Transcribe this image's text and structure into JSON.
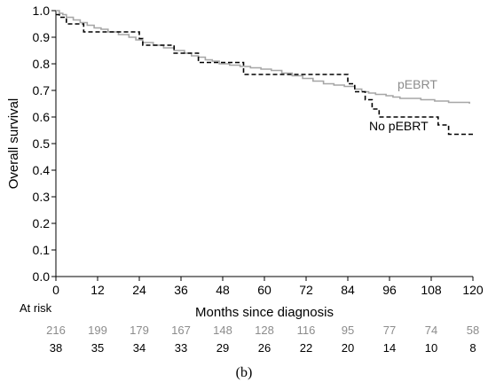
{
  "chart_data": {
    "type": "line",
    "title": "",
    "xlabel": "Months since diagnosis",
    "ylabel": "Overall survival",
    "xlim": [
      0,
      120
    ],
    "ylim": [
      0.0,
      1.0
    ],
    "xticks": [
      "0",
      "12",
      "24",
      "36",
      "48",
      "60",
      "72",
      "84",
      "96",
      "108",
      "120"
    ],
    "yticks": [
      "0.0",
      "0.1",
      "0.2",
      "0.3",
      "0.4",
      "0.5",
      "0.6",
      "0.7",
      "0.8",
      "0.9",
      "1.0"
    ],
    "grid": false,
    "series": [
      {
        "name": "pEBRT",
        "color": "#a6a6a6",
        "style": "solid",
        "x": [
          0,
          1,
          2,
          3,
          5,
          7,
          9,
          11,
          13,
          15,
          18,
          21,
          23,
          25,
          28,
          31,
          34,
          37,
          39,
          41,
          43,
          45,
          47,
          50,
          53,
          56,
          59,
          62,
          65,
          68,
          71,
          74,
          77,
          80,
          83,
          86,
          88,
          90,
          92,
          95,
          97,
          99,
          101,
          103,
          105,
          107,
          109,
          111,
          113,
          115,
          117,
          119
        ],
        "y": [
          1.0,
          0.99,
          0.985,
          0.975,
          0.965,
          0.955,
          0.945,
          0.935,
          0.93,
          0.92,
          0.91,
          0.9,
          0.89,
          0.88,
          0.87,
          0.86,
          0.85,
          0.84,
          0.83,
          0.825,
          0.815,
          0.81,
          0.8,
          0.795,
          0.79,
          0.785,
          0.78,
          0.775,
          0.765,
          0.755,
          0.745,
          0.735,
          0.725,
          0.72,
          0.715,
          0.705,
          0.695,
          0.69,
          0.685,
          0.68,
          0.675,
          0.67,
          0.67,
          0.67,
          0.665,
          0.665,
          0.66,
          0.66,
          0.655,
          0.655,
          0.655,
          0.65
        ]
      },
      {
        "name": "No pEBRT",
        "color": "#000000",
        "style": "dashed",
        "x": [
          0,
          1,
          3,
          8,
          24,
          25,
          34,
          41,
          54,
          84,
          86,
          89,
          91,
          93,
          108,
          110,
          113,
          120
        ],
        "y": [
          0.985,
          0.975,
          0.95,
          0.92,
          0.895,
          0.87,
          0.84,
          0.805,
          0.76,
          0.725,
          0.695,
          0.665,
          0.63,
          0.6,
          0.6,
          0.57,
          0.535,
          0.535
        ]
      }
    ],
    "legend": [
      {
        "label": "pEBRT",
        "color": "#8c8c8c"
      },
      {
        "label": "No pEBRT",
        "color": "#000000"
      }
    ],
    "at_risk": {
      "title": "At risk",
      "rows": [
        {
          "color": "#8c8c8c",
          "values": [
            "216",
            "199",
            "179",
            "167",
            "148",
            "128",
            "116",
            "95",
            "77",
            "74",
            "58"
          ]
        },
        {
          "color": "#000000",
          "values": [
            "38",
            "35",
            "34",
            "33",
            "29",
            "26",
            "22",
            "20",
            "14",
            "10",
            "8"
          ]
        }
      ]
    },
    "caption": "(b)"
  }
}
